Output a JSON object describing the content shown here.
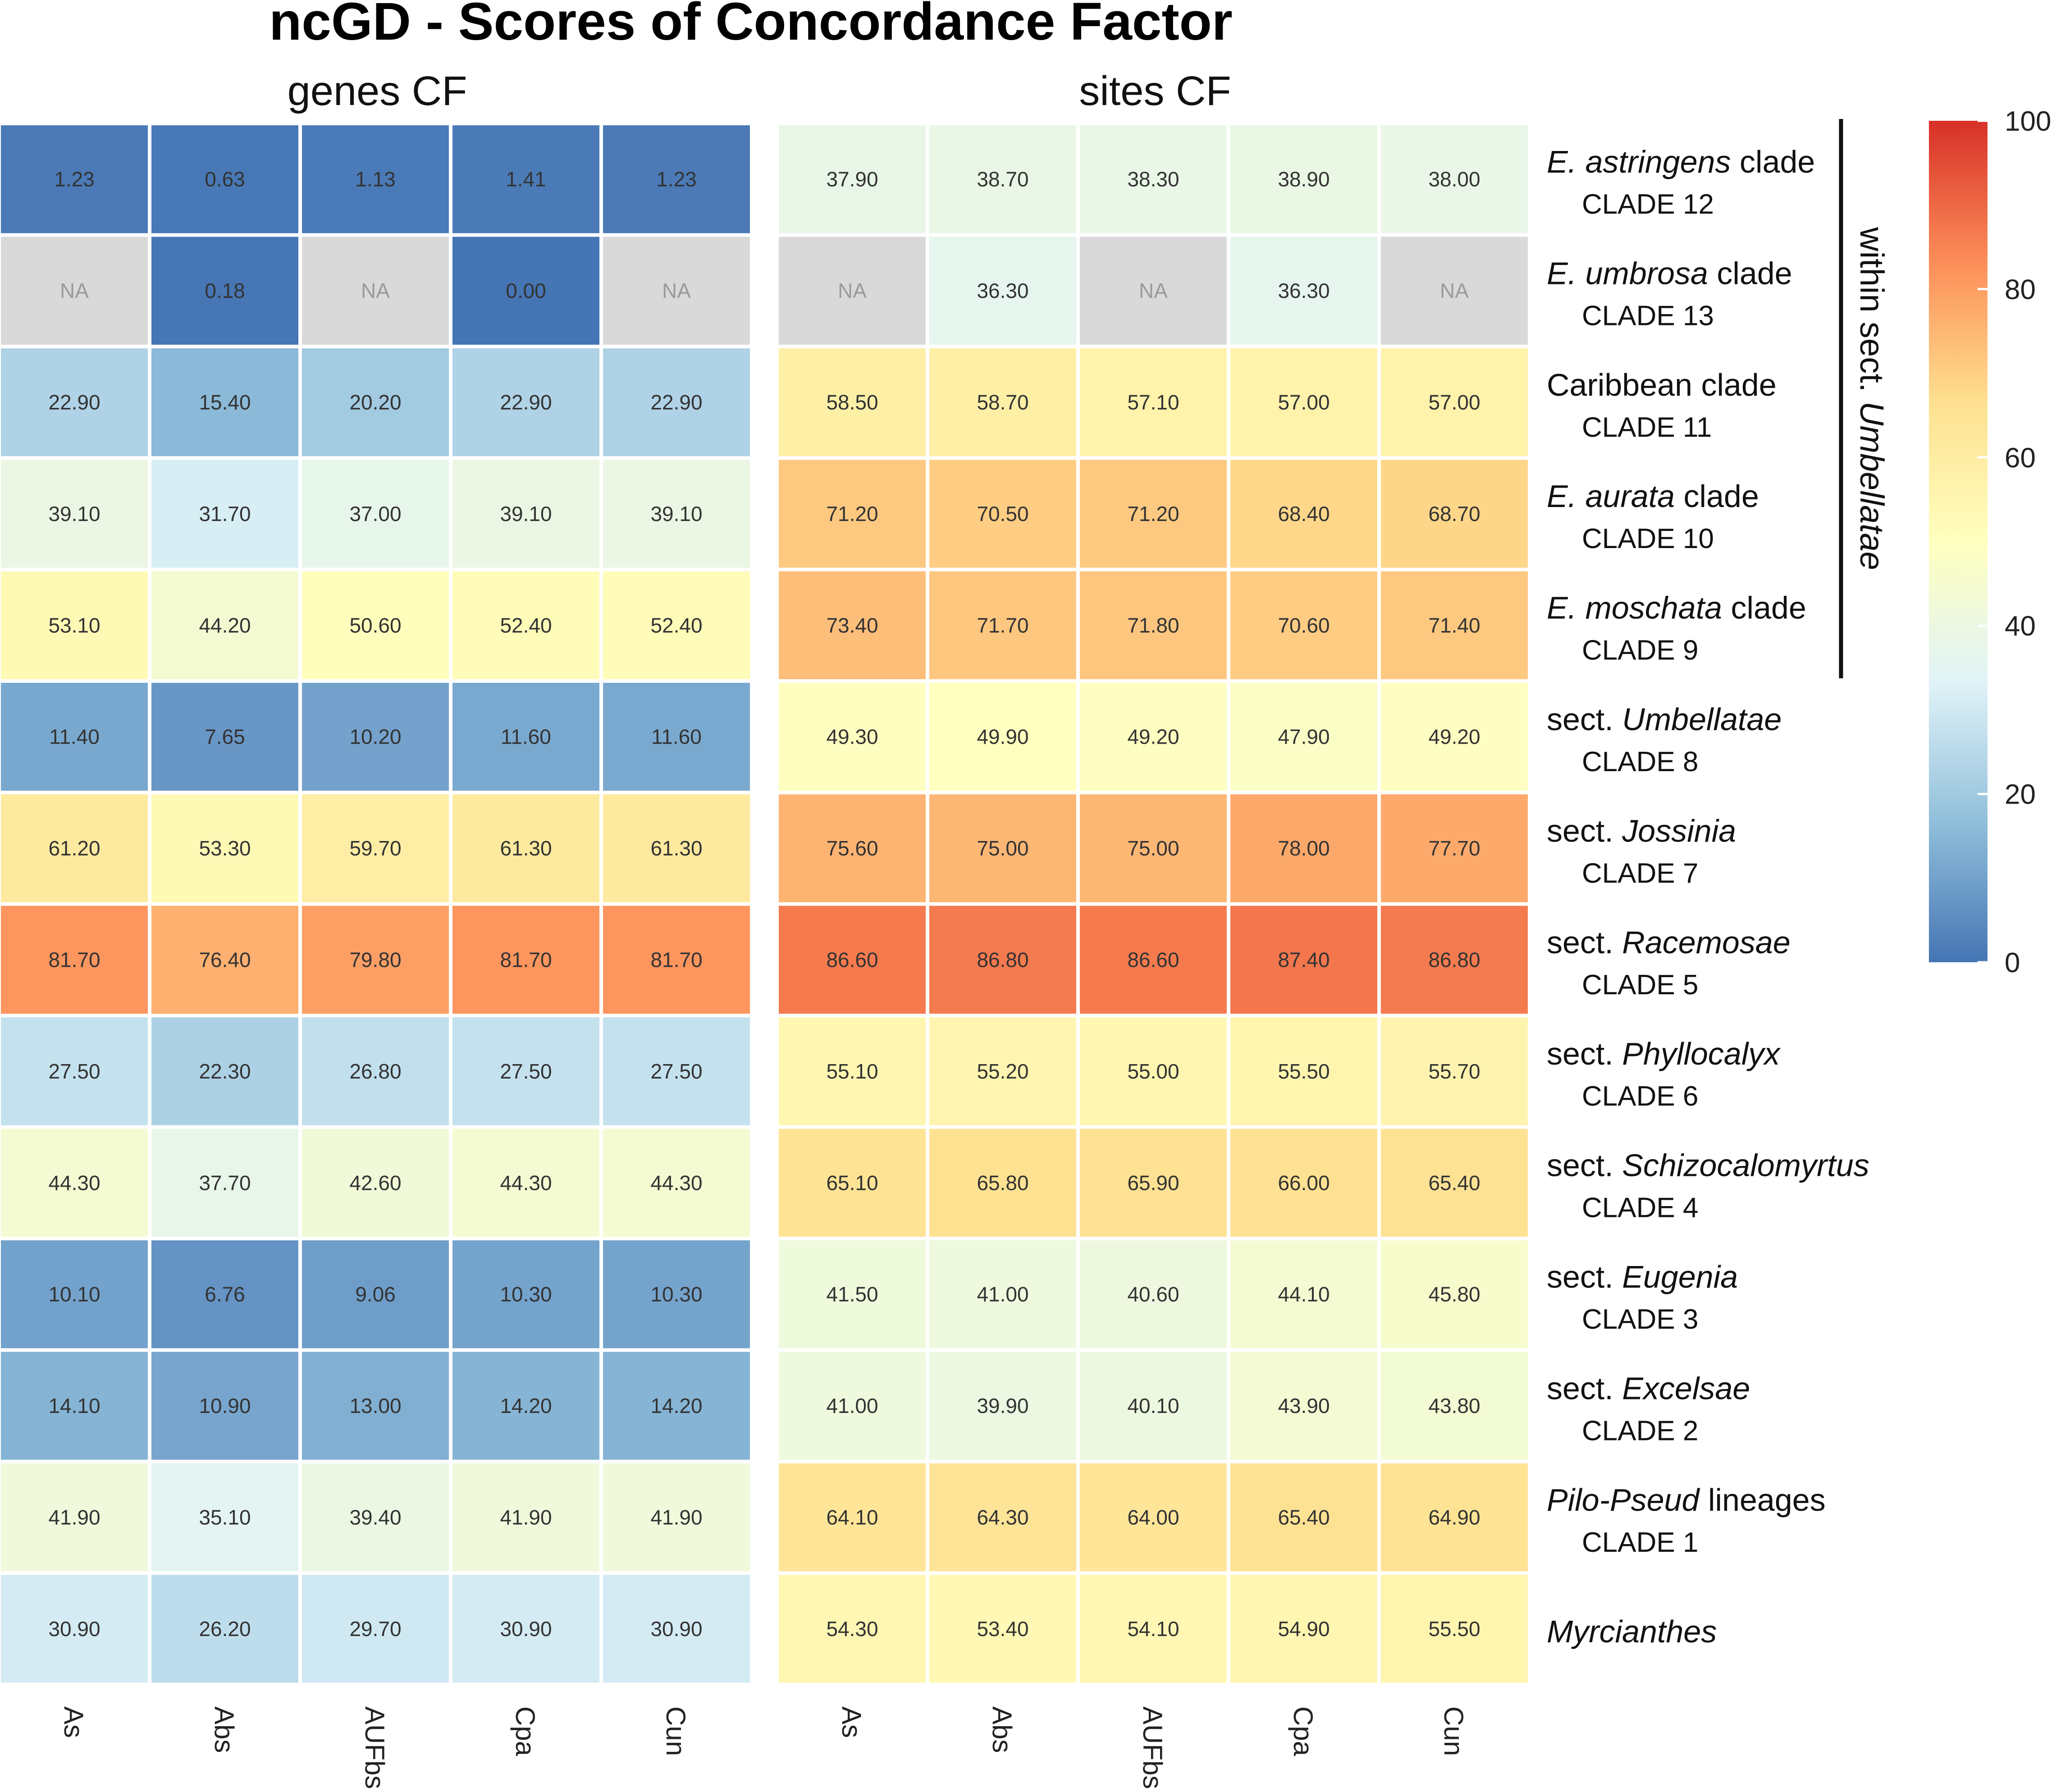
{
  "chart_data": {
    "type": "heatmap",
    "title": "ncGD - Scores of Concordance Factor",
    "panels": [
      {
        "title": "genes CF",
        "columns": [
          "As",
          "Abs",
          "AUFbs",
          "Cpa",
          "Cun"
        ],
        "values": [
          [
            "1.23",
            "0.63",
            "1.13",
            "1.41",
            "1.23"
          ],
          [
            "NA",
            "0.18",
            "NA",
            "0.00",
            "NA"
          ],
          [
            "22.90",
            "15.40",
            "20.20",
            "22.90",
            "22.90"
          ],
          [
            "39.10",
            "31.70",
            "37.00",
            "39.10",
            "39.10"
          ],
          [
            "53.10",
            "44.20",
            "50.60",
            "52.40",
            "52.40"
          ],
          [
            "11.40",
            "7.65",
            "10.20",
            "11.60",
            "11.60"
          ],
          [
            "61.20",
            "53.30",
            "59.70",
            "61.30",
            "61.30"
          ],
          [
            "81.70",
            "76.40",
            "79.80",
            "81.70",
            "81.70"
          ],
          [
            "27.50",
            "22.30",
            "26.80",
            "27.50",
            "27.50"
          ],
          [
            "44.30",
            "37.70",
            "42.60",
            "44.30",
            "44.30"
          ],
          [
            "10.10",
            "6.76",
            "9.06",
            "10.30",
            "10.30"
          ],
          [
            "14.10",
            "10.90",
            "13.00",
            "14.20",
            "14.20"
          ],
          [
            "41.90",
            "35.10",
            "39.40",
            "41.90",
            "41.90"
          ],
          [
            "30.90",
            "26.20",
            "29.70",
            "30.90",
            "30.90"
          ]
        ]
      },
      {
        "title": "sites CF",
        "columns": [
          "As",
          "Abs",
          "AUFbs",
          "Cpa",
          "Cun"
        ],
        "values": [
          [
            "37.90",
            "38.70",
            "38.30",
            "38.90",
            "38.00"
          ],
          [
            "NA",
            "36.30",
            "NA",
            "36.30",
            "NA"
          ],
          [
            "58.50",
            "58.70",
            "57.10",
            "57.00",
            "57.00"
          ],
          [
            "71.20",
            "70.50",
            "71.20",
            "68.40",
            "68.70"
          ],
          [
            "73.40",
            "71.70",
            "71.80",
            "70.60",
            "71.40"
          ],
          [
            "49.30",
            "49.90",
            "49.20",
            "47.90",
            "49.20"
          ],
          [
            "75.60",
            "75.00",
            "75.00",
            "78.00",
            "77.70"
          ],
          [
            "86.60",
            "86.80",
            "86.60",
            "87.40",
            "86.80"
          ],
          [
            "55.10",
            "55.20",
            "55.00",
            "55.50",
            "55.70"
          ],
          [
            "65.10",
            "65.80",
            "65.90",
            "66.00",
            "65.40"
          ],
          [
            "41.50",
            "41.00",
            "40.60",
            "44.10",
            "45.80"
          ],
          [
            "41.00",
            "39.90",
            "40.10",
            "43.90",
            "43.80"
          ],
          [
            "64.10",
            "64.30",
            "64.00",
            "65.40",
            "64.90"
          ],
          [
            "54.30",
            "53.40",
            "54.10",
            "54.90",
            "55.50"
          ]
        ]
      }
    ],
    "rows": [
      {
        "parts": [
          {
            "t": "E. astringens",
            "i": true
          },
          {
            "t": " clade",
            "i": false
          }
        ],
        "clade": "CLADE 12"
      },
      {
        "parts": [
          {
            "t": "E. umbrosa",
            "i": true
          },
          {
            "t": " clade",
            "i": false
          }
        ],
        "clade": "CLADE 13"
      },
      {
        "parts": [
          {
            "t": "Caribbean clade",
            "i": false
          }
        ],
        "clade": "CLADE 11"
      },
      {
        "parts": [
          {
            "t": "E. aurata",
            "i": true
          },
          {
            "t": " clade",
            "i": false
          }
        ],
        "clade": "CLADE 10"
      },
      {
        "parts": [
          {
            "t": "E. moschata",
            "i": true
          },
          {
            "t": " clade",
            "i": false
          }
        ],
        "clade": "CLADE 9"
      },
      {
        "parts": [
          {
            "t": "sect. ",
            "i": false
          },
          {
            "t": "Umbellatae",
            "i": true
          }
        ],
        "clade": "CLADE 8"
      },
      {
        "parts": [
          {
            "t": "sect. ",
            "i": false
          },
          {
            "t": "Jossinia",
            "i": true
          }
        ],
        "clade": "CLADE 7"
      },
      {
        "parts": [
          {
            "t": "sect. ",
            "i": false
          },
          {
            "t": "Racemosae",
            "i": true
          }
        ],
        "clade": "CLADE 5"
      },
      {
        "parts": [
          {
            "t": "sect. ",
            "i": false
          },
          {
            "t": "Phyllocalyx",
            "i": true
          }
        ],
        "clade": "CLADE 6"
      },
      {
        "parts": [
          {
            "t": "sect. ",
            "i": false
          },
          {
            "t": "Schizocalomyrtus",
            "i": true
          }
        ],
        "clade": "CLADE 4"
      },
      {
        "parts": [
          {
            "t": "sect. ",
            "i": false
          },
          {
            "t": "Eugenia",
            "i": true
          }
        ],
        "clade": "CLADE 3"
      },
      {
        "parts": [
          {
            "t": "sect. ",
            "i": false
          },
          {
            "t": "Excelsae",
            "i": true
          }
        ],
        "clade": "CLADE 2"
      },
      {
        "parts": [
          {
            "t": "Pilo-Pseud",
            "i": true
          },
          {
            "t": " lineages",
            "i": false
          }
        ],
        "clade": "CLADE 1"
      },
      {
        "parts": [
          {
            "t": "Myrcianthes",
            "i": true
          }
        ],
        "clade": ""
      }
    ],
    "bracket": {
      "parts": [
        {
          "t": "within sect. ",
          "i": false
        },
        {
          "t": "Umbellatae",
          "i": true
        }
      ],
      "first_row": 0,
      "last_row": 4
    },
    "colorbar": {
      "min": 0,
      "max": 100,
      "ticks": [
        "0",
        "20",
        "40",
        "60",
        "80",
        "100"
      ],
      "stops": [
        "#4575b4",
        "#91bfdb",
        "#e0f3f8",
        "#ffffbf",
        "#fee090",
        "#fc8d59",
        "#d73027"
      ]
    },
    "na_color": "#d9d9d9",
    "na_text_color": "#9a9a9a",
    "value_text_color": "#333333"
  }
}
